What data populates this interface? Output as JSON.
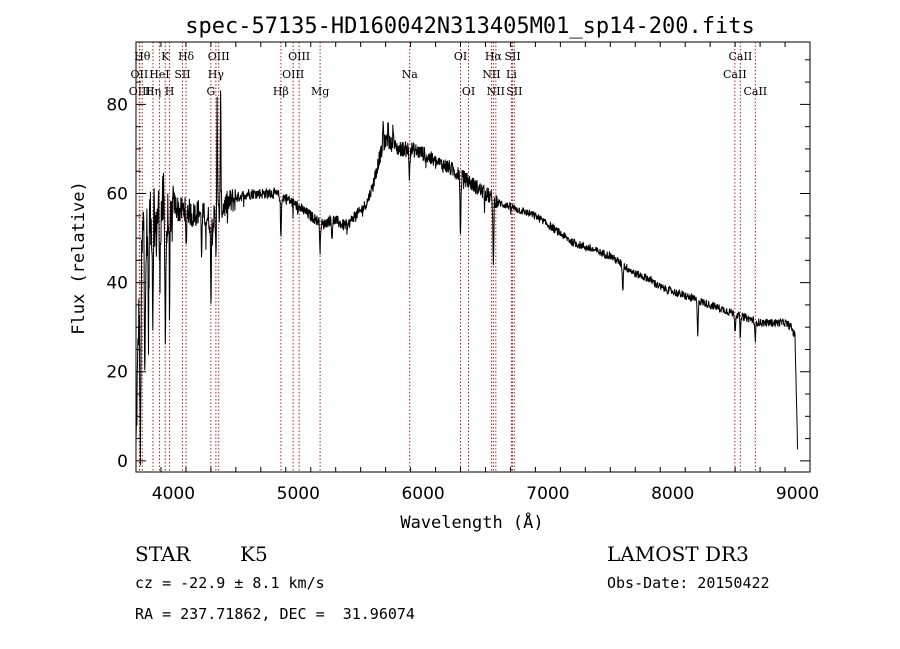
{
  "chart_data": {
    "type": "line",
    "title": "spec-57135-HD160042N313405M01_sp14-200.fits",
    "xlabel": "Wavelength (Å)",
    "ylabel": "Flux (relative)",
    "xlim": [
      3700,
      9100
    ],
    "ylim": [
      -2.5,
      94
    ],
    "xticks": [
      4000,
      5000,
      6000,
      7000,
      8000,
      9000
    ],
    "yticks": [
      0,
      20,
      40,
      60,
      80
    ],
    "grid": false,
    "series": [
      {
        "name": "spectrum",
        "anchors": [
          [
            3700,
            2
          ],
          [
            3720,
            30
          ],
          [
            3740,
            40
          ],
          [
            3760,
            55
          ],
          [
            3780,
            48
          ],
          [
            3800,
            58
          ],
          [
            3820,
            52
          ],
          [
            3840,
            60
          ],
          [
            3860,
            50
          ],
          [
            3880,
            58
          ],
          [
            3900,
            55
          ],
          [
            3920,
            58
          ],
          [
            3940,
            48
          ],
          [
            3960,
            56
          ],
          [
            3980,
            52
          ],
          [
            4000,
            58
          ],
          [
            4050,
            56
          ],
          [
            4100,
            57
          ],
          [
            4150,
            55
          ],
          [
            4200,
            56
          ],
          [
            4250,
            55
          ],
          [
            4300,
            54
          ],
          [
            4350,
            55
          ],
          [
            4400,
            57
          ],
          [
            4500,
            59
          ],
          [
            4600,
            60
          ],
          [
            4700,
            60
          ],
          [
            4800,
            60
          ],
          [
            4900,
            59
          ],
          [
            5000,
            57
          ],
          [
            5100,
            55
          ],
          [
            5200,
            53
          ],
          [
            5250,
            54
          ],
          [
            5300,
            54
          ],
          [
            5350,
            53
          ],
          [
            5400,
            53
          ],
          [
            5450,
            55
          ],
          [
            5500,
            56
          ],
          [
            5550,
            58
          ],
          [
            5600,
            62
          ],
          [
            5650,
            68
          ],
          [
            5700,
            72
          ],
          [
            5750,
            71
          ],
          [
            5800,
            70
          ],
          [
            5900,
            70
          ],
          [
            6000,
            69
          ],
          [
            6100,
            67
          ],
          [
            6200,
            66
          ],
          [
            6300,
            64
          ],
          [
            6400,
            62
          ],
          [
            6500,
            60
          ],
          [
            6600,
            58
          ],
          [
            6700,
            57
          ],
          [
            6800,
            56
          ],
          [
            6900,
            55
          ],
          [
            7000,
            53
          ],
          [
            7100,
            51
          ],
          [
            7200,
            49
          ],
          [
            7300,
            48
          ],
          [
            7400,
            47
          ],
          [
            7500,
            46
          ],
          [
            7600,
            44
          ],
          [
            7700,
            42
          ],
          [
            7800,
            41
          ],
          [
            7900,
            39
          ],
          [
            8000,
            38
          ],
          [
            8100,
            37
          ],
          [
            8200,
            36
          ],
          [
            8300,
            35
          ],
          [
            8400,
            34
          ],
          [
            8500,
            33
          ],
          [
            8600,
            32
          ],
          [
            8700,
            31
          ],
          [
            8800,
            31
          ],
          [
            8900,
            31
          ],
          [
            8950,
            30
          ],
          [
            8980,
            28
          ],
          [
            9000,
            3
          ]
        ],
        "dips": [
          [
            3735,
            -40
          ],
          [
            3770,
            -30
          ],
          [
            3800,
            -30
          ],
          [
            3835,
            -25
          ],
          [
            3890,
            -15
          ],
          [
            3934,
            -20
          ],
          [
            3969,
            -18
          ],
          [
            4101,
            -10
          ],
          [
            4226,
            -8
          ],
          [
            4300,
            -16
          ],
          [
            4340,
            -8
          ],
          [
            4861,
            -10
          ],
          [
            5175,
            -6
          ],
          [
            5270,
            -4
          ],
          [
            5890,
            -6
          ],
          [
            6300,
            -14
          ],
          [
            6563,
            -16
          ],
          [
            7600,
            -6
          ],
          [
            8200,
            -8
          ],
          [
            8500,
            -4
          ],
          [
            8542,
            -5
          ],
          [
            8662,
            -5
          ]
        ],
        "spikes": [
          [
            4350,
            28
          ],
          [
            4378,
            25
          ],
          [
            5680,
            6
          ],
          [
            5720,
            5
          ],
          [
            5760,
            5
          ]
        ]
      }
    ],
    "spectral_lines": [
      {
        "label": "Hθ",
        "x": 3750,
        "row": 0
      },
      {
        "label": "OII",
        "x": 3727,
        "row": 1
      },
      {
        "label": "OIII",
        "x": 3730,
        "row": 2
      },
      {
        "label": "K",
        "x": 3934,
        "row": 0
      },
      {
        "label": "HeI",
        "x": 3888,
        "row": 1
      },
      {
        "label": "Hη",
        "x": 3836,
        "row": 2
      },
      {
        "label": "H",
        "x": 3969,
        "row": 2
      },
      {
        "label": "Hδ",
        "x": 4101,
        "row": 0
      },
      {
        "label": "SII",
        "x": 4072,
        "row": 1
      },
      {
        "label": "OIII",
        "x": 4363,
        "row": 0
      },
      {
        "label": "Hγ",
        "x": 4340,
        "row": 1
      },
      {
        "label": "G",
        "x": 4300,
        "row": 2
      },
      {
        "label": "OIII",
        "x": 5007,
        "row": 0
      },
      {
        "label": "OIII",
        "x": 4959,
        "row": 1
      },
      {
        "label": "Hβ",
        "x": 4861,
        "row": 2
      },
      {
        "label": "Mg",
        "x": 5175,
        "row": 2
      },
      {
        "label": "Na",
        "x": 5893,
        "row": 1
      },
      {
        "label": "OI",
        "x": 6300,
        "row": 0
      },
      {
        "label": "OI",
        "x": 6364,
        "row": 2
      },
      {
        "label": "Hα",
        "x": 6563,
        "row": 0
      },
      {
        "label": "SII",
        "x": 6717,
        "row": 0
      },
      {
        "label": "NII",
        "x": 6548,
        "row": 1
      },
      {
        "label": "Li",
        "x": 6708,
        "row": 1
      },
      {
        "label": "NII",
        "x": 6583,
        "row": 2
      },
      {
        "label": "SII",
        "x": 6731,
        "row": 2
      },
      {
        "label": "CaII",
        "x": 8542,
        "row": 0
      },
      {
        "label": "CaII",
        "x": 8498,
        "row": 1
      },
      {
        "label": "CaII",
        "x": 8662,
        "row": 2
      }
    ]
  },
  "info": {
    "object_class": "STAR",
    "subclass": "K5",
    "survey": "LAMOST DR3",
    "cz": "cz = -22.9 ± 8.1 km/s",
    "obs_date": "Obs-Date: 20150422",
    "coords": "RA = 237.71862, DEC =  31.96074"
  },
  "colors": {
    "line_marker": "#b22222",
    "spectrum": "#000000"
  }
}
